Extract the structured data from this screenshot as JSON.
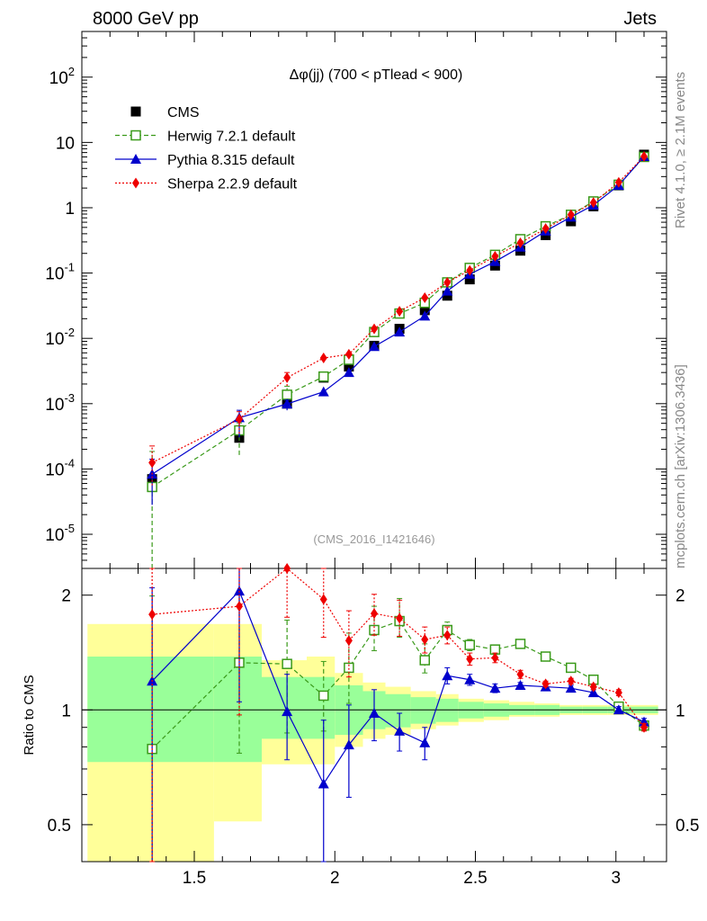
{
  "header": {
    "left": "8000 GeV pp",
    "right": "Jets"
  },
  "side_labels": {
    "rivet": "Rivet 4.1.0, ≥ 2.1M events",
    "source": "mcplots.cern.ch [arXiv:1306.3436]"
  },
  "chart_data": [
    {
      "type": "line",
      "panel": "main",
      "title": "Δφ(jj) (700 < pTlead <  900)",
      "watermark": "(CMS_2016_I1421646)",
      "yscale": "log",
      "xlim": [
        1.1,
        3.18
      ],
      "ylim": [
        3e-06,
        500
      ],
      "ytick_labels": [
        "10^-5",
        "10^-4",
        "10^-3",
        "10^-2",
        "10^-1",
        "1",
        "10",
        "10^2"
      ],
      "x": [
        1.35,
        1.66,
        1.83,
        1.96,
        2.05,
        2.14,
        2.23,
        2.32,
        2.4,
        2.48,
        2.57,
        2.66,
        2.75,
        2.84,
        2.92,
        3.01,
        3.1
      ],
      "legend": [
        "CMS",
        "Herwig 7.2.1 default",
        "Pythia 8.315 default",
        "Sherpa 2.2.9 default"
      ],
      "legend_position": "top-left",
      "series": [
        {
          "name": "CMS",
          "color": "#000000",
          "marker": "square-filled",
          "values": [
            7e-05,
            0.0003,
            0.001,
            0.0025,
            0.0037,
            0.0077,
            0.014,
            0.027,
            0.045,
            0.08,
            0.13,
            0.22,
            0.38,
            0.62,
            1.05,
            2.2,
            6.5
          ]
        },
        {
          "name": "Herwig 7.2.1 default",
          "color": "#3a9a1a",
          "marker": "square-open",
          "dash": "dashed",
          "values": [
            5.3e-05,
            0.00039,
            0.00137,
            0.0026,
            0.0047,
            0.0125,
            0.024,
            0.035,
            0.072,
            0.12,
            0.19,
            0.33,
            0.52,
            0.78,
            1.25,
            2.25,
            6.0
          ]
        },
        {
          "name": "Pythia 8.315 default",
          "color": "#0000cc",
          "marker": "triangle-filled",
          "dash": "solid",
          "values": [
            8.3e-05,
            0.00061,
            0.00099,
            0.00152,
            0.003,
            0.0075,
            0.0125,
            0.022,
            0.053,
            0.096,
            0.15,
            0.25,
            0.44,
            0.72,
            1.1,
            2.2,
            6.1
          ]
        },
        {
          "name": "Sherpa 2.2.9 default",
          "color": "#ee0000",
          "marker": "diamond-filled",
          "dash": "dotted",
          "values": [
            0.000125,
            0.00058,
            0.0025,
            0.005,
            0.0057,
            0.014,
            0.026,
            0.042,
            0.072,
            0.11,
            0.18,
            0.29,
            0.48,
            0.78,
            1.2,
            2.45,
            6.1
          ]
        }
      ]
    },
    {
      "type": "line",
      "panel": "ratio",
      "ylabel": "Ratio to CMS",
      "xlim": [
        1.1,
        3.18
      ],
      "ylim": [
        0.4,
        2.35
      ],
      "yscale": "log",
      "xtick_labels": [
        "1.5",
        "2",
        "2.5",
        "3"
      ],
      "ytick_labels": [
        "0.5",
        "1",
        "2"
      ],
      "reference_line": 1,
      "x": [
        1.35,
        1.66,
        1.83,
        1.96,
        2.05,
        2.14,
        2.23,
        2.32,
        2.4,
        2.48,
        2.57,
        2.66,
        2.75,
        2.84,
        2.92,
        3.01,
        3.1
      ],
      "uncertainty_bands": {
        "colors": {
          "inner": "#99ff99",
          "outer": "#ffff99"
        },
        "bins": [
          {
            "x": [
              1.12,
              1.57
            ],
            "inner": [
              0.73,
              1.38
            ],
            "outer": [
              0.35,
              1.68
            ]
          },
          {
            "x": [
              1.57,
              1.74
            ],
            "inner": [
              0.73,
              1.38
            ],
            "outer": [
              0.51,
              1.68
            ]
          },
          {
            "x": [
              1.74,
              1.9
            ],
            "inner": [
              0.84,
              1.22
            ],
            "outer": [
              0.72,
              1.35
            ]
          },
          {
            "x": [
              1.9,
              2.0
            ],
            "inner": [
              0.84,
              1.22
            ],
            "outer": [
              0.72,
              1.38
            ]
          },
          {
            "x": [
              2.0,
              2.1
            ],
            "inner": [
              0.86,
              1.16
            ],
            "outer": [
              0.8,
              1.25
            ]
          },
          {
            "x": [
              2.1,
              2.18
            ],
            "inner": [
              0.89,
              1.12
            ],
            "outer": [
              0.84,
              1.18
            ]
          },
          {
            "x": [
              2.18,
              2.27
            ],
            "inner": [
              0.9,
              1.1
            ],
            "outer": [
              0.86,
              1.15
            ]
          },
          {
            "x": [
              2.27,
              2.36
            ],
            "inner": [
              0.92,
              1.08
            ],
            "outer": [
              0.89,
              1.12
            ]
          },
          {
            "x": [
              2.36,
              2.44
            ],
            "inner": [
              0.93,
              1.07
            ],
            "outer": [
              0.91,
              1.1
            ]
          },
          {
            "x": [
              2.44,
              2.53
            ],
            "inner": [
              0.95,
              1.05
            ],
            "outer": [
              0.93,
              1.07
            ]
          },
          {
            "x": [
              2.53,
              2.62
            ],
            "inner": [
              0.96,
              1.04
            ],
            "outer": [
              0.94,
              1.06
            ]
          },
          {
            "x": [
              2.62,
              2.71
            ],
            "inner": [
              0.97,
              1.03
            ],
            "outer": [
              0.96,
              1.05
            ]
          },
          {
            "x": [
              2.71,
              2.8
            ],
            "inner": [
              0.97,
              1.03
            ],
            "outer": [
              0.96,
              1.04
            ]
          },
          {
            "x": [
              2.8,
              2.88
            ],
            "inner": [
              0.98,
              1.02
            ],
            "outer": [
              0.97,
              1.03
            ]
          },
          {
            "x": [
              2.88,
              2.97
            ],
            "inner": [
              0.98,
              1.02
            ],
            "outer": [
              0.97,
              1.03
            ]
          },
          {
            "x": [
              2.97,
              3.05
            ],
            "inner": [
              0.98,
              1.02
            ],
            "outer": [
              0.97,
              1.03
            ]
          },
          {
            "x": [
              3.05,
              3.15
            ],
            "inner": [
              0.98,
              1.02
            ],
            "outer": [
              0.97,
              1.03
            ]
          }
        ]
      },
      "series": [
        {
          "name": "Herwig 7.2.1 default",
          "color": "#3a9a1a",
          "marker": "square-open",
          "dash": "dashed",
          "values": [
            0.79,
            1.33,
            1.32,
            1.09,
            1.29,
            1.62,
            1.71,
            1.35,
            1.62,
            1.48,
            1.44,
            1.49,
            1.38,
            1.29,
            1.2,
            1.02,
            0.91
          ],
          "err_low": [
            0.44,
            0.56,
            0.45,
            0.21,
            0.25,
            0.19,
            0.16,
            0.1,
            0.07,
            0.05,
            0.04,
            0.03,
            0.02,
            0.02,
            0.02,
            0.02,
            0.02
          ],
          "err_high": [
            1.2,
            0.7,
            0.4,
            0.25,
            0.3,
            0.25,
            0.25,
            0.14,
            0.08,
            0.05,
            0.04,
            0.03,
            0.02,
            0.02,
            0.02,
            0.02,
            0.02
          ]
        },
        {
          "name": "Pythia 8.315 default",
          "color": "#0000cc",
          "marker": "triangle-filled",
          "dash": "solid",
          "values": [
            1.19,
            2.05,
            0.99,
            0.64,
            0.81,
            0.98,
            0.88,
            0.82,
            1.23,
            1.2,
            1.14,
            1.16,
            1.15,
            1.14,
            1.11,
            1.0,
            0.93
          ],
          "err_low": [
            0.9,
            1.0,
            0.25,
            0.3,
            0.22,
            0.15,
            0.1,
            0.08,
            0.06,
            0.04,
            0.03,
            0.02,
            0.02,
            0.02,
            0.02,
            0.02,
            0.02
          ],
          "err_high": [
            0.9,
            0.7,
            0.25,
            0.3,
            0.22,
            0.15,
            0.1,
            0.08,
            0.06,
            0.04,
            0.03,
            0.02,
            0.02,
            0.02,
            0.02,
            0.02,
            0.02
          ]
        },
        {
          "name": "Sherpa 2.2.9 default",
          "color": "#ee0000",
          "marker": "diamond-filled",
          "dash": "dotted",
          "values": [
            1.78,
            1.87,
            2.35,
            1.95,
            1.52,
            1.79,
            1.74,
            1.53,
            1.57,
            1.36,
            1.37,
            1.24,
            1.17,
            1.19,
            1.15,
            1.11,
            0.9
          ],
          "err_low": [
            1.4,
            0.9,
            0.6,
            0.4,
            0.3,
            0.22,
            0.18,
            0.12,
            0.08,
            0.05,
            0.04,
            0.03,
            0.02,
            0.02,
            0.02,
            0.02,
            0.02
          ],
          "err_high": [
            1.2,
            0.8,
            0.6,
            0.4,
            0.3,
            0.22,
            0.2,
            0.12,
            0.08,
            0.05,
            0.04,
            0.03,
            0.02,
            0.02,
            0.02,
            0.02,
            0.02
          ]
        }
      ]
    }
  ]
}
